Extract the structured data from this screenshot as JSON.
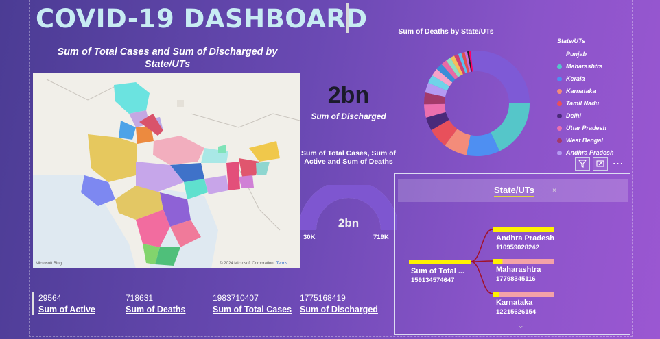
{
  "header": {
    "title": "COVID-19 DASHBOARD"
  },
  "map": {
    "title": "Sum of Total Cases and Sum of Discharged by State/UTs",
    "zoom_in": "+",
    "zoom_out": "−",
    "credit": "Microsoft Bing",
    "copyright": "© 2024 Microsoft Corporation",
    "terms": "Terms"
  },
  "discharged_kpi": {
    "value": "2bn",
    "label": "Sum of Discharged"
  },
  "gauge": {
    "title": "Sum of Total Cases, Sum of Active and Sum of Deaths",
    "value": "2bn",
    "min": "30K",
    "max": "719K",
    "fill_fraction": 1.0,
    "color": "#7e56d0"
  },
  "donut": {
    "title": "Sum of Deaths by State/UTs",
    "legend_title": "State/UTs",
    "legend": [
      {
        "name": "Punjab",
        "color": "#7e5ad6"
      },
      {
        "name": "Maharashtra",
        "color": "#55c6c9"
      },
      {
        "name": "Kerala",
        "color": "#4e8ff2"
      },
      {
        "name": "Karnataka",
        "color": "#f38c7a"
      },
      {
        "name": "Tamil Nadu",
        "color": "#e8505b"
      },
      {
        "name": "Delhi",
        "color": "#4a2a7a"
      },
      {
        "name": "Uttar Pradesh",
        "color": "#ec6fae"
      },
      {
        "name": "West Bengal",
        "color": "#a33a6a"
      },
      {
        "name": "Andhra Pradesh",
        "color": "#b49af2"
      }
    ]
  },
  "decomposition": {
    "header": "State/UTs",
    "close": "×",
    "root": {
      "label": "Sum of Total ...",
      "value": "159134574647"
    },
    "children": [
      {
        "label": "Andhra Pradesh",
        "value": "110959028242",
        "fraction": 1.0
      },
      {
        "label": "Maharashtra",
        "value": "17798345116",
        "fraction": 0.16
      },
      {
        "label": "Karnataka",
        "value": "12215626154",
        "fraction": 0.11
      }
    ],
    "chevron": "⌄"
  },
  "cards": [
    {
      "value": "29564",
      "label": "Sum of Active"
    },
    {
      "value": "718631",
      "label": "Sum of Deaths"
    },
    {
      "value": "1983710407",
      "label": "Sum of Total Cases"
    },
    {
      "value": "1775168419",
      "label": "Sum of Discharged"
    }
  ],
  "colors": {
    "accent_yellow": "#fff200",
    "bar_pink": "#f3a2a8",
    "branch_red": "#a1122a"
  }
}
